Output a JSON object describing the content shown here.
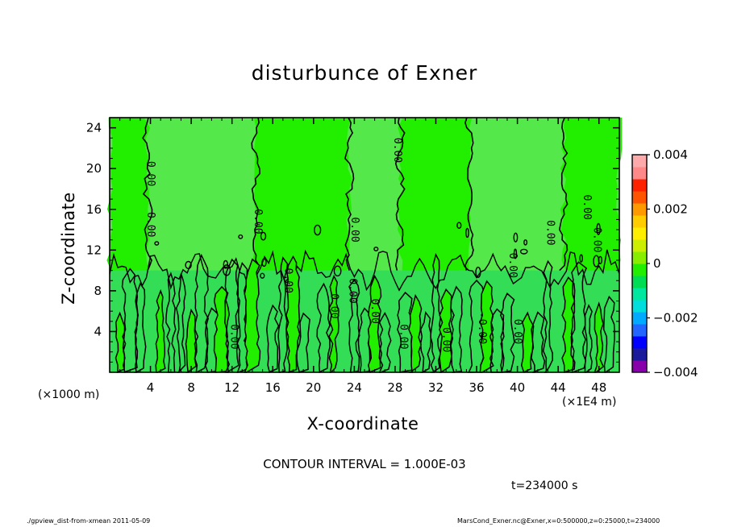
{
  "chart_data": {
    "type": "heatmap",
    "title": "disturbunce of Exner",
    "xlabel": "X-coordinate",
    "ylabel": "Z-coordinate",
    "x_unit_left": "(×1000 m)",
    "x_unit_right": "(×1E4 m)",
    "xlim": [
      0,
      50
    ],
    "ylim": [
      0,
      25
    ],
    "x_ticks": [
      4,
      8,
      12,
      16,
      20,
      24,
      28,
      32,
      36,
      40,
      44,
      48
    ],
    "y_ticks": [
      4,
      8,
      12,
      16,
      20,
      24
    ],
    "contour_interval_text": "CONTOUR INTERVAL = 1.000E-03",
    "time_text": "t=234000 s",
    "contour_label": "0.00",
    "colorbar": {
      "min": -0.004,
      "max": 0.004,
      "tick_values": [
        0.004,
        0.002,
        0,
        -0.002,
        -0.004
      ],
      "tick_labels": [
        "0.004",
        "0.002",
        "0",
        "−0.002",
        "−0.004"
      ],
      "colors": [
        "#8800aa",
        "#1a1a9a",
        "#0000ff",
        "#2266ff",
        "#00aaff",
        "#00dddd",
        "#00e8a0",
        "#00dd55",
        "#22ee00",
        "#88ee00",
        "#ccee00",
        "#ffee00",
        "#ffcc00",
        "#ff9900",
        "#ff5500",
        "#ff2200",
        "#ff8888",
        "#ffaaaa"
      ]
    },
    "fill_colors": {
      "upper_light": "#55e84a",
      "bright": "#22ee00",
      "near_zero": "#33dd55"
    },
    "upper_boundaries_x": [
      3.7,
      14.3,
      23.5,
      28.5,
      35.3,
      44.5
    ],
    "columns_x": [
      1,
      2,
      3,
      5,
      6,
      7,
      8,
      9,
      10,
      11,
      12,
      13,
      14,
      16,
      17,
      18,
      19,
      21,
      22,
      24,
      25,
      26,
      27,
      29,
      30,
      31,
      32,
      33,
      34,
      36,
      37,
      38,
      39,
      41,
      42,
      43,
      45,
      46,
      47,
      48,
      49
    ],
    "contour_labels": [
      {
        "x": 4.0,
        "z": 19.5
      },
      {
        "x": 4.0,
        "z": 14.5
      },
      {
        "x": 12.2,
        "z": 3.5
      },
      {
        "x": 14.5,
        "z": 14.8
      },
      {
        "x": 17.5,
        "z": 9.0
      },
      {
        "x": 22.0,
        "z": 6.5
      },
      {
        "x": 23.8,
        "z": 8.0
      },
      {
        "x": 24.0,
        "z": 14.0
      },
      {
        "x": 26.0,
        "z": 6.0
      },
      {
        "x": 28.2,
        "z": 21.8
      },
      {
        "x": 28.8,
        "z": 3.5
      },
      {
        "x": 33.0,
        "z": 3.2
      },
      {
        "x": 36.5,
        "z": 4.0
      },
      {
        "x": 39.5,
        "z": 10.5
      },
      {
        "x": 40.0,
        "z": 4.0
      },
      {
        "x": 43.2,
        "z": 13.7
      },
      {
        "x": 46.8,
        "z": 16.2
      },
      {
        "x": 47.8,
        "z": 13.0
      }
    ]
  },
  "footer_left": "./gpview_dist-from-xmean  2011-05-09",
  "footer_right": "MarsCond_Exner.nc@Exner,x=0:500000,z=0:25000,t=234000"
}
